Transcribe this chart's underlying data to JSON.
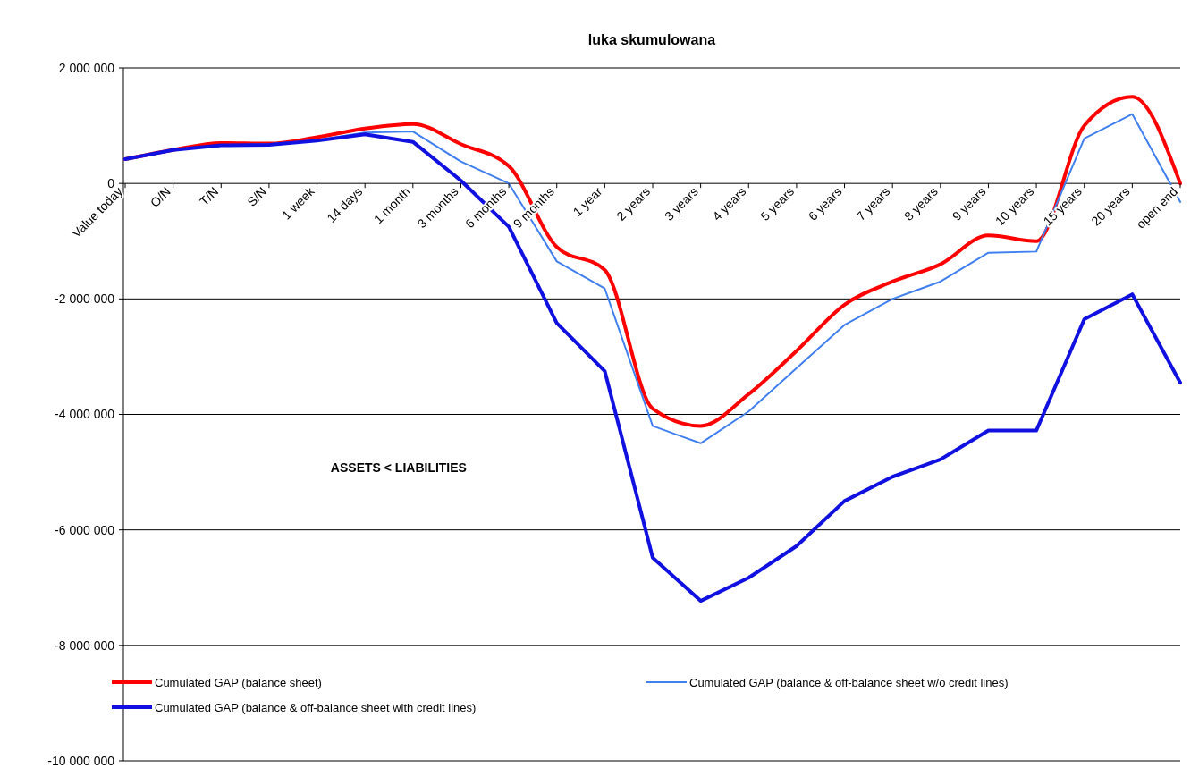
{
  "chart_data": {
    "type": "line",
    "title": "luka skumulowana",
    "categories": [
      "Value today",
      "O/N",
      "T/N",
      "S/N",
      "1 week",
      "14 days",
      "1 month",
      "3 months",
      "6 months",
      "9 months",
      "1 year",
      "2 years",
      "3 years",
      "4 years",
      "5 years",
      "6 years",
      "7 years",
      "8 years",
      "9 years",
      "10 years",
      "15 years",
      "20 years",
      "open end"
    ],
    "series": [
      {
        "name": "Cumulated GAP (balance sheet)",
        "color": "#ff0000",
        "values": [
          420000,
          580000,
          700000,
          690000,
          800000,
          950000,
          1030000,
          680000,
          300000,
          -1100000,
          -1500000,
          -3900000,
          -4200000,
          -3650000,
          -2900000,
          -2100000,
          -1700000,
          -1400000,
          -900000,
          -1000000,
          1000000,
          1500000,
          0
        ]
      },
      {
        "name": "Cumulated GAP (balance & off-balance sheet w/o credit lines)",
        "color": "#3f7fef",
        "values": [
          420000,
          580000,
          660000,
          680000,
          750000,
          880000,
          900000,
          380000,
          0,
          -1350000,
          -1820000,
          -4200000,
          -4500000,
          -3950000,
          -3200000,
          -2450000,
          -2000000,
          -1700000,
          -1200000,
          -1180000,
          780000,
          1200000,
          -320000
        ]
      },
      {
        "name": "Cumulated GAP (balance & off-balance sheet with credit lines)",
        "color": "#1010e0",
        "values": [
          420000,
          580000,
          660000,
          670000,
          740000,
          850000,
          720000,
          50000,
          -750000,
          -2420000,
          -3250000,
          -6480000,
          -7230000,
          -6830000,
          -6280000,
          -5500000,
          -5080000,
          -4780000,
          -4280000,
          -4280000,
          -2350000,
          -1920000,
          -3450000
        ]
      }
    ],
    "ylim": [
      -10000000,
      2000000
    ],
    "yticks": [
      {
        "value": -10000000,
        "label": "-10 000 000"
      },
      {
        "value": -8000000,
        "label": "-8 000 000"
      },
      {
        "value": -6000000,
        "label": "-6 000 000"
      },
      {
        "value": -4000000,
        "label": "-4 000 000"
      },
      {
        "value": -2000000,
        "label": "-2 000 000"
      },
      {
        "value": 0,
        "label": "0"
      },
      {
        "value": 2000000,
        "label": "2 000 000"
      }
    ],
    "grid": "y",
    "legend": "bottom",
    "marker": "none",
    "line_style": "solid",
    "annotations": [
      "ASSETS < LIABILITIES"
    ]
  }
}
